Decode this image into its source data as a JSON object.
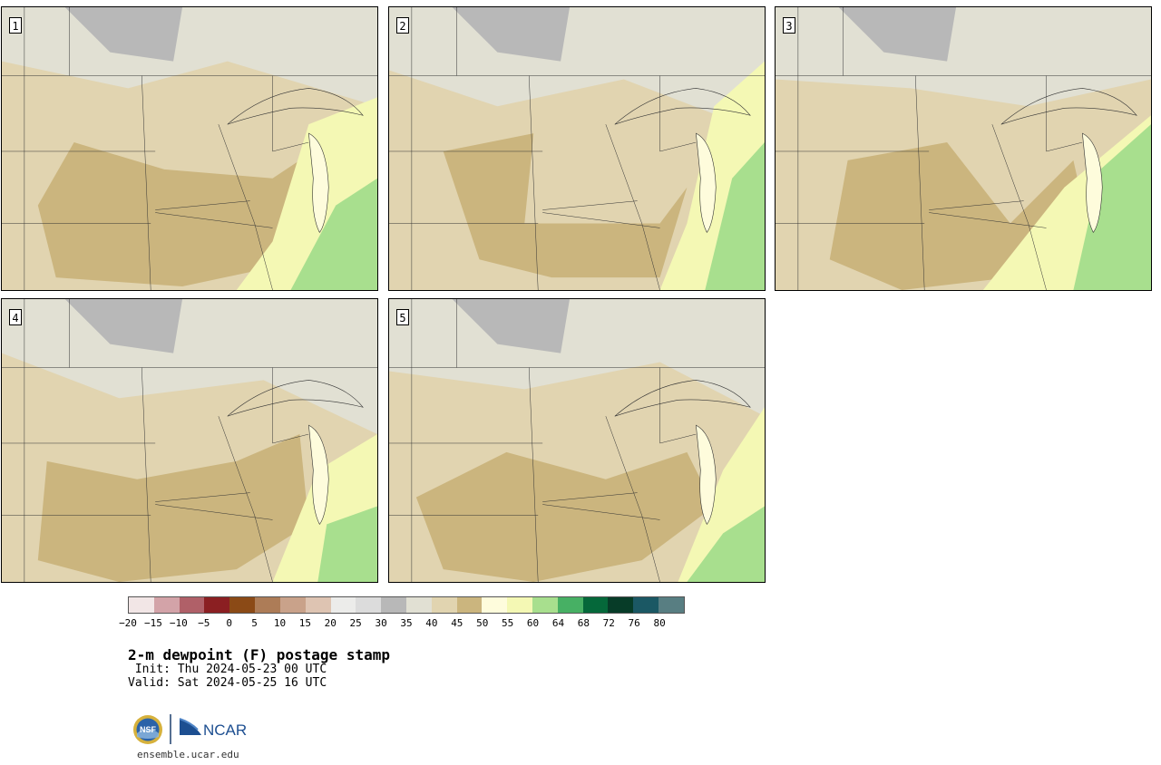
{
  "map": {
    "title": "2-m dewpoint (F) postage stamp",
    "init": " Init: Thu 2024-05-23 00 UTC",
    "valid": "Valid: Sat 2024-05-25 16 UTC",
    "panels": [
      {
        "label": "1"
      },
      {
        "label": "2"
      },
      {
        "label": "3"
      },
      {
        "label": "4"
      },
      {
        "label": "5"
      }
    ]
  },
  "colorbar": {
    "colors": [
      "#f2e6e6",
      "#d3a3a8",
      "#b06068",
      "#8b1f22",
      "#8b4a16",
      "#ad7c57",
      "#c9a28a",
      "#dec4b2",
      "#ececea",
      "#dcdcdc",
      "#b8b8b8",
      "#e1e0d3",
      "#e1d4b0",
      "#cbb57e",
      "#fefcdc",
      "#f4f8b4",
      "#a8df8e",
      "#47b064",
      "#05683a",
      "#073c28",
      "#1b5864",
      "#587e82"
    ],
    "ticks": [
      "−20",
      "−15",
      "−10",
      "−5",
      "0",
      "5",
      "10",
      "15",
      "20",
      "25",
      "30",
      "35",
      "40",
      "45",
      "50",
      "55",
      "60",
      "64",
      "68",
      "72",
      "76",
      "80"
    ]
  },
  "footer": {
    "logo_nsf": "NSF",
    "logo_ncar": "NCAR",
    "site": "ensemble.ucar.edu"
  }
}
